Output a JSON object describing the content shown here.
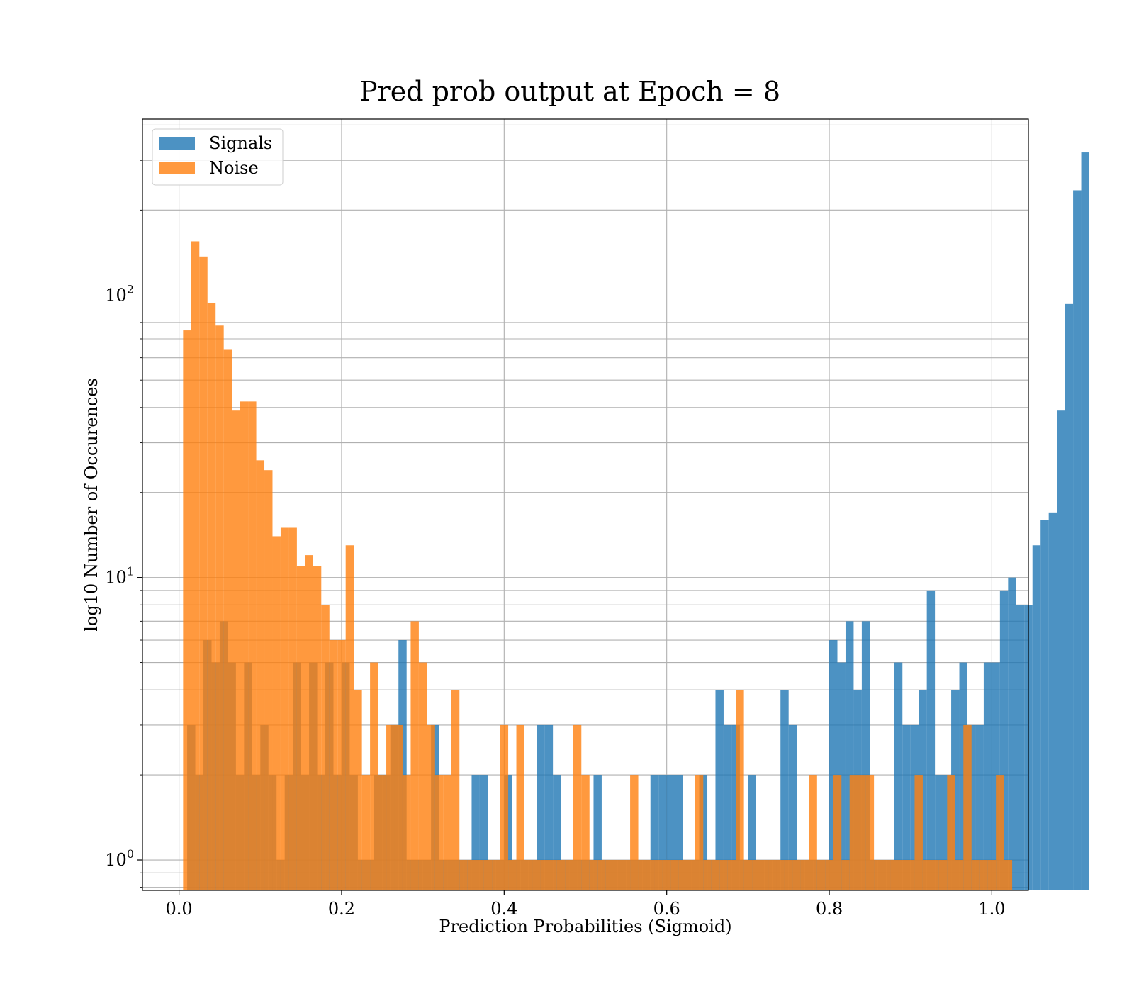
{
  "chart_data": {
    "type": "bar",
    "title": "Pred prob output at Epoch = 8",
    "xlabel": "Prediction Probabilities (Sigmoid)",
    "ylabel": "log10 Number of Occurences",
    "yscale": "log",
    "xlim": [
      -0.045,
      1.045
    ],
    "ylim": [
      0.78,
      420
    ],
    "bin_width": 0.01,
    "grid": true,
    "legend_position": "top-left",
    "x_ticks": [
      {
        "value": 0.0,
        "label": "0.0"
      },
      {
        "value": 0.2,
        "label": "0.2"
      },
      {
        "value": 0.4,
        "label": "0.4"
      },
      {
        "value": 0.6,
        "label": "0.6"
      },
      {
        "value": 0.8,
        "label": "0.8"
      },
      {
        "value": 1.0,
        "label": "1.0"
      }
    ],
    "y_ticks": [
      {
        "value": 1,
        "base": "10",
        "exp": "0"
      },
      {
        "value": 10,
        "base": "10",
        "exp": "1"
      },
      {
        "value": 100,
        "base": "10",
        "exp": "2"
      }
    ],
    "series": [
      {
        "name": "Signals",
        "color": "#1f77b4",
        "bin_start": 0.01,
        "values": [
          3,
          2,
          6,
          5,
          7,
          5,
          2,
          5,
          2,
          3,
          2,
          1,
          2,
          5,
          2,
          5,
          2,
          5,
          2,
          5,
          2,
          1,
          1,
          2,
          2,
          3,
          6,
          1,
          1,
          1,
          3,
          1,
          1,
          1,
          1,
          2,
          2,
          1,
          1,
          2,
          1,
          1,
          1,
          3,
          3,
          2,
          1,
          1,
          1,
          1,
          2,
          1,
          1,
          1,
          1,
          1,
          1,
          2,
          2,
          2,
          2,
          1,
          1,
          2,
          1,
          4,
          3,
          3,
          1,
          2,
          1,
          1,
          1,
          4,
          3,
          1,
          1,
          1,
          1,
          6,
          5,
          7,
          4,
          7,
          1,
          1,
          1,
          5,
          3,
          3,
          4,
          9,
          2,
          2,
          4,
          5,
          3,
          3,
          5,
          5,
          9,
          10,
          8,
          8,
          13,
          16,
          17,
          39,
          93,
          235,
          320
        ]
      },
      {
        "name": "Noise",
        "color": "#ff7f0e",
        "bin_start": 0.005,
        "values": [
          75,
          155,
          137,
          94,
          78,
          64,
          39,
          42,
          42,
          26,
          24,
          14,
          15,
          15,
          11,
          12,
          11,
          8,
          6,
          6,
          13,
          4,
          2,
          5,
          2,
          3,
          3,
          2,
          7,
          5,
          3,
          2,
          2,
          4,
          1,
          1,
          1,
          1,
          1,
          3,
          1,
          3,
          1,
          1,
          1,
          1,
          1,
          1,
          3,
          2,
          1,
          1,
          1,
          1,
          1,
          2,
          1,
          1,
          1,
          1,
          1,
          1,
          1,
          2,
          1,
          1,
          1,
          1,
          4,
          1,
          1,
          1,
          1,
          1,
          1,
          1,
          1,
          2,
          1,
          1,
          2,
          1,
          2,
          2,
          2,
          1,
          1,
          1,
          1,
          1,
          2,
          1,
          1,
          1,
          2,
          1,
          3,
          1,
          1,
          1,
          2,
          1
        ]
      }
    ]
  }
}
